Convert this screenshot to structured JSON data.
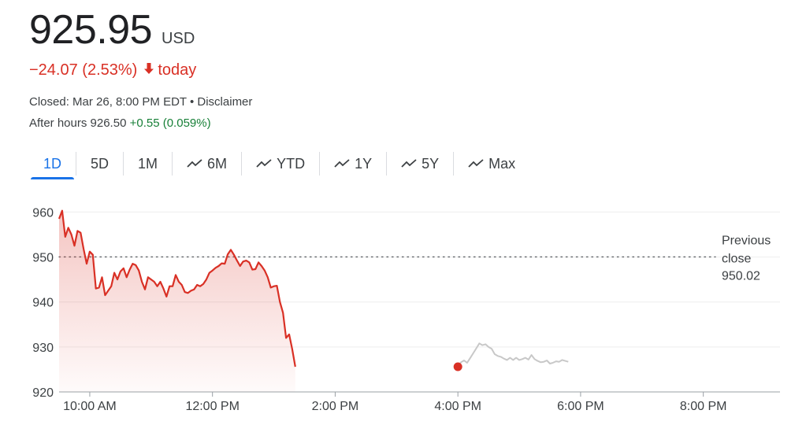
{
  "quote": {
    "price": "925.95",
    "currency": "USD",
    "change": "−24.07 (2.53%)",
    "change_suffix": "today",
    "closed": "Closed: Mar 26, 8:00 PM EDT • Disclaimer",
    "after_hours_label": "After hours 926.50",
    "after_hours_change": "+0.55 (0.059%)"
  },
  "tabs": [
    {
      "label": "1D",
      "active": true,
      "icon": ""
    },
    {
      "label": "5D",
      "active": false,
      "icon": ""
    },
    {
      "label": "1M",
      "active": false,
      "icon": ""
    },
    {
      "label": "6M",
      "active": false,
      "icon": "trend-icon"
    },
    {
      "label": "YTD",
      "active": false,
      "icon": "trend-icon"
    },
    {
      "label": "1Y",
      "active": false,
      "icon": "trend-icon"
    },
    {
      "label": "5Y",
      "active": false,
      "icon": "trend-icon"
    },
    {
      "label": "Max",
      "active": false,
      "icon": "trend-icon"
    }
  ],
  "colors": {
    "down": "#d93025",
    "after_hours": "#c8c8c8",
    "accent": "#1a73e8",
    "up": "#188038"
  },
  "chart_data": {
    "type": "line",
    "xlim": [
      "9:30 AM",
      "9:15 PM"
    ],
    "ylim": [
      920,
      962
    ],
    "ytick_labels": [
      "960",
      "950",
      "940",
      "930",
      "920"
    ],
    "yticks": [
      960,
      950,
      940,
      930,
      920
    ],
    "xtick_labels": [
      "10:00 AM",
      "12:00 PM",
      "2:00 PM",
      "4:00 PM",
      "6:00 PM",
      "8:00 PM"
    ],
    "xticks": [
      "10:00 AM",
      "12:00 PM",
      "2:00 PM",
      "4:00 PM",
      "6:00 PM",
      "8:00 PM"
    ],
    "previous_close": {
      "label_line1": "Previous",
      "label_line2": "close",
      "value": 950.02,
      "value_text": "950.02"
    },
    "series": [
      {
        "session": "regular",
        "points": [
          [
            "9:30 AM",
            958.5
          ],
          [
            "9:33 AM",
            960.3
          ],
          [
            "9:36 AM",
            954.5
          ],
          [
            "9:39 AM",
            956.5
          ],
          [
            "9:42 AM",
            955.0
          ],
          [
            "9:45 AM",
            952.5
          ],
          [
            "9:48 AM",
            955.8
          ],
          [
            "9:51 AM",
            955.4
          ],
          [
            "9:54 AM",
            951.8
          ],
          [
            "9:57 AM",
            948.5
          ],
          [
            "10:00 AM",
            951.2
          ],
          [
            "10:03 AM",
            950.5
          ],
          [
            "10:06 AM",
            943.0
          ],
          [
            "10:09 AM",
            943.2
          ],
          [
            "10:12 AM",
            945.5
          ],
          [
            "10:15 AM",
            941.5
          ],
          [
            "10:18 AM",
            942.5
          ],
          [
            "10:21 AM",
            943.5
          ],
          [
            "10:24 AM",
            946.5
          ],
          [
            "10:27 AM",
            945.0
          ],
          [
            "10:30 AM",
            946.8
          ],
          [
            "10:33 AM",
            947.5
          ],
          [
            "10:36 AM",
            945.5
          ],
          [
            "10:39 AM",
            947.2
          ],
          [
            "10:42 AM",
            948.5
          ],
          [
            "10:45 AM",
            948.2
          ],
          [
            "10:48 AM",
            947.0
          ],
          [
            "10:51 AM",
            944.5
          ],
          [
            "10:54 AM",
            942.8
          ],
          [
            "10:57 AM",
            945.5
          ],
          [
            "11:00 AM",
            945.0
          ],
          [
            "11:03 AM",
            944.5
          ],
          [
            "11:06 AM",
            943.5
          ],
          [
            "11:09 AM",
            944.5
          ],
          [
            "11:12 AM",
            943.0
          ],
          [
            "11:15 AM",
            941.2
          ],
          [
            "11:18 AM",
            943.5
          ],
          [
            "11:21 AM",
            943.5
          ],
          [
            "11:24 AM",
            946.0
          ],
          [
            "11:27 AM",
            944.5
          ],
          [
            "11:30 AM",
            943.8
          ],
          [
            "11:33 AM",
            942.2
          ],
          [
            "11:36 AM",
            942.0
          ],
          [
            "11:39 AM",
            942.5
          ],
          [
            "11:42 AM",
            942.8
          ],
          [
            "11:45 AM",
            943.8
          ],
          [
            "11:48 AM",
            943.5
          ],
          [
            "11:51 AM",
            944.0
          ],
          [
            "11:54 AM",
            945.0
          ],
          [
            "11:57 AM",
            946.5
          ],
          [
            "12:00 PM",
            947.0
          ],
          [
            "12:03 PM",
            947.6
          ],
          [
            "12:06 PM",
            948.0
          ],
          [
            "12:09 PM",
            948.6
          ],
          [
            "12:12 PM",
            948.5
          ],
          [
            "12:15 PM",
            950.6
          ],
          [
            "12:18 PM",
            951.6
          ],
          [
            "12:21 PM",
            950.5
          ],
          [
            "12:24 PM",
            949.2
          ],
          [
            "12:27 PM",
            948.0
          ],
          [
            "12:30 PM",
            949.0
          ],
          [
            "12:33 PM",
            949.2
          ],
          [
            "12:36 PM",
            948.8
          ],
          [
            "12:39 PM",
            947.2
          ],
          [
            "12:42 PM",
            947.3
          ],
          [
            "12:45 PM",
            948.8
          ],
          [
            "12:48 PM",
            948.0
          ],
          [
            "12:51 PM",
            947.0
          ],
          [
            "12:54 PM",
            945.5
          ],
          [
            "12:57 PM",
            943.2
          ],
          [
            "1:00 PM",
            943.5
          ],
          [
            "1:03 PM",
            943.6
          ],
          [
            "1:06 PM",
            940.0
          ],
          [
            "1:09 PM",
            937.6
          ],
          [
            "1:12 PM",
            932.0
          ],
          [
            "1:15 PM",
            932.8
          ],
          [
            "1:18 PM",
            929.5
          ],
          [
            "1:21 PM",
            925.6
          ]
        ]
      },
      {
        "session": "after_hours",
        "points": [
          [
            "4:00 PM",
            925.6
          ],
          [
            "4:03 PM",
            926.6
          ],
          [
            "4:06 PM",
            927.0
          ],
          [
            "4:09 PM",
            926.5
          ],
          [
            "4:12 PM",
            927.5
          ],
          [
            "4:15 PM",
            928.6
          ],
          [
            "4:18 PM",
            929.7
          ],
          [
            "4:21 PM",
            930.8
          ],
          [
            "4:24 PM",
            930.4
          ],
          [
            "4:27 PM",
            930.6
          ],
          [
            "4:30 PM",
            930.0
          ],
          [
            "4:33 PM",
            929.6
          ],
          [
            "4:36 PM",
            928.4
          ],
          [
            "4:39 PM",
            928.0
          ],
          [
            "4:42 PM",
            927.8
          ],
          [
            "4:45 PM",
            927.4
          ],
          [
            "4:48 PM",
            927.1
          ],
          [
            "4:51 PM",
            927.6
          ],
          [
            "4:54 PM",
            927.1
          ],
          [
            "4:57 PM",
            927.6
          ],
          [
            "5:00 PM",
            927.1
          ],
          [
            "5:03 PM",
            927.3
          ],
          [
            "5:06 PM",
            927.6
          ],
          [
            "5:09 PM",
            927.2
          ],
          [
            "5:12 PM",
            928.2
          ],
          [
            "5:15 PM",
            927.3
          ],
          [
            "5:18 PM",
            926.9
          ],
          [
            "5:21 PM",
            926.6
          ],
          [
            "5:24 PM",
            926.7
          ],
          [
            "5:27 PM",
            927.0
          ],
          [
            "5:30 PM",
            926.3
          ],
          [
            "5:33 PM",
            926.5
          ],
          [
            "5:36 PM",
            926.8
          ],
          [
            "5:39 PM",
            926.7
          ],
          [
            "5:42 PM",
            927.1
          ],
          [
            "5:45 PM",
            926.9
          ],
          [
            "5:48 PM",
            926.7
          ]
        ]
      }
    ],
    "end_marker": {
      "time": "4:00 PM",
      "value": 925.6
    }
  }
}
